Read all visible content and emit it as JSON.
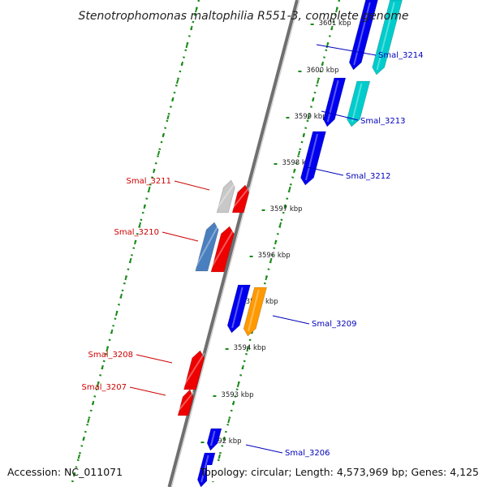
{
  "title": "Stenotrophomonas maltophilia R551-3, complete genome",
  "footer": {
    "accession": "Accession: NC_011071",
    "summary": "Topology: circular; Length: 4,573,969 bp; Genes: 4,125"
  },
  "ruler": {
    "ticks": [
      {
        "label": "3601 kbp"
      },
      {
        "label": "3600 kbp"
      },
      {
        "label": "3599 kbp"
      },
      {
        "label": "3598 kbp"
      },
      {
        "label": "3597 kbp"
      },
      {
        "label": "3596 kbp"
      },
      {
        "label": "3595 kbp"
      },
      {
        "label": "3594 kbp"
      },
      {
        "label": "3593 kbp"
      },
      {
        "label": "3592 kbp"
      }
    ]
  },
  "colors": {
    "plus_strand_label": "#0000bb",
    "minus_strand_label": "#cc0000",
    "backbone": "#8a8a8a",
    "dotted_guide": "#1a8a1a"
  },
  "genes": [
    {
      "label": "Smal_3214",
      "strand": "+",
      "color": "#0000ee"
    },
    {
      "label": "",
      "strand": "+",
      "color": "#00cccc"
    },
    {
      "label": "Smal_3213",
      "strand": "+",
      "color": "#00cccc"
    },
    {
      "label": "",
      "strand": "+",
      "color": "#0000ee"
    },
    {
      "label": "Smal_3212",
      "strand": "+",
      "color": "#0000ee"
    },
    {
      "label": "Smal_3211",
      "strand": "-",
      "color": "#c8c8c8"
    },
    {
      "label": "",
      "strand": "-",
      "color": "#ee0000"
    },
    {
      "label": "Smal_3210",
      "strand": "-",
      "color": "#4a7fbf"
    },
    {
      "label": "",
      "strand": "-",
      "color": "#ee0000"
    },
    {
      "label": "",
      "strand": "+",
      "color": "#0000ee"
    },
    {
      "label": "Smal_3209",
      "strand": "+",
      "color": "#ff9900"
    },
    {
      "label": "Smal_3208",
      "strand": "-",
      "color": "#ee0000"
    },
    {
      "label": "Smal_3207",
      "strand": "-",
      "color": "#ee0000"
    },
    {
      "label": "Smal_3206",
      "strand": "+",
      "color": "#0000ee"
    },
    {
      "label": "",
      "strand": "+",
      "color": "#0000ee"
    }
  ]
}
